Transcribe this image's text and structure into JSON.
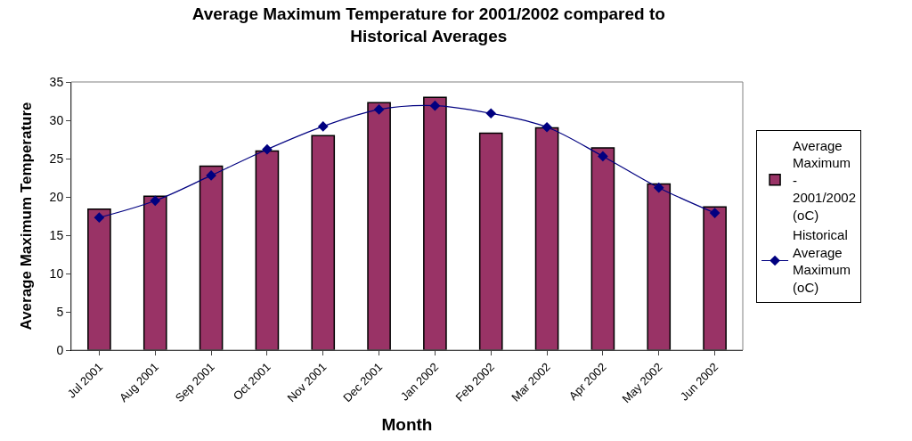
{
  "chart_data": {
    "type": "bar",
    "title": "Average Maximum Temperature for 2001/2002 compared to\nHistorical Averages",
    "xlabel": "Month",
    "ylabel": "Average Maximum Temperature",
    "categories": [
      "Jul 2001",
      "Aug 2001",
      "Sep 2001",
      "Oct 2001",
      "Nov 2001",
      "Dec 2001",
      "Jan 2002",
      "Feb 2002",
      "Mar 2002",
      "Apr 2002",
      "May 2002",
      "Jun 2002"
    ],
    "series": [
      {
        "name": "Average\nMaximum\n-\n2001/2002\n(oC)",
        "color": "#993366",
        "values": [
          18.4,
          20.1,
          24.0,
          26.0,
          28.0,
          32.3,
          33.0,
          28.3,
          29.0,
          26.4,
          21.7,
          18.7
        ]
      },
      {
        "name": "Historical\nAverage\nMaximum\n(oC)",
        "type": "line",
        "color": "#000080",
        "marker": "diamond",
        "values": [
          17.3,
          19.5,
          22.8,
          26.2,
          29.2,
          31.4,
          31.9,
          30.9,
          29.1,
          25.3,
          21.2,
          17.9
        ]
      }
    ],
    "ylim": [
      0,
      35
    ],
    "yticks": [
      0,
      5,
      10,
      15,
      20,
      25,
      30,
      35
    ],
    "legend": "right"
  }
}
